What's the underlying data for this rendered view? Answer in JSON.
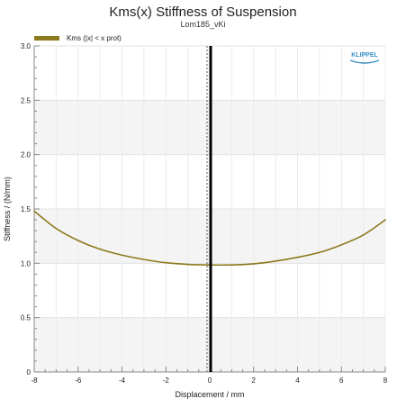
{
  "chart_data": {
    "type": "line",
    "title": "Kms(x) Stiffness of Suspension",
    "subtitle": "Lom185_vKi",
    "xlabel": "Displacement / mm",
    "ylabel": "Stiffness / (N/mm)",
    "xlim": [
      -8,
      8
    ],
    "ylim": [
      0,
      3
    ],
    "xticks": [
      -8,
      -6,
      -4,
      -2,
      0,
      2,
      4,
      6,
      8
    ],
    "yticks": [
      "0",
      "0.5",
      "1.0",
      "1.5",
      "2.0",
      "2.5",
      "3.0"
    ],
    "grid": true,
    "legend_position": "top-left",
    "series": [
      {
        "name": "Kms (|x| < x prot)",
        "color": "#8c7a1e",
        "x": [
          -8,
          -7,
          -6,
          -5,
          -4,
          -3,
          -2,
          -1,
          0,
          1,
          2,
          3,
          4,
          5,
          6,
          7,
          8
        ],
        "y": [
          1.48,
          1.32,
          1.21,
          1.13,
          1.075,
          1.035,
          1.005,
          0.99,
          0.985,
          0.985,
          0.995,
          1.02,
          1.055,
          1.1,
          1.17,
          1.26,
          1.4
        ]
      }
    ],
    "reference_line": {
      "x": 0,
      "color": "#000000"
    },
    "logo_text": "KLIPPEL"
  }
}
